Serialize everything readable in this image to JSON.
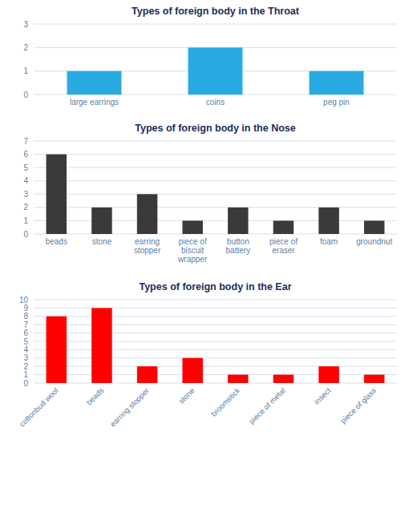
{
  "chart_data": [
    {
      "type": "bar",
      "title": "Types of foreign body in the Throat",
      "categories": [
        "large earrings",
        "coins",
        "peg pin"
      ],
      "values": [
        1,
        2,
        1
      ],
      "color": "#29ABE2",
      "ylim": [
        0,
        3
      ],
      "yticks": [
        0,
        1,
        2,
        3
      ],
      "grid": true
    },
    {
      "type": "bar",
      "title": "Types of foreign body in the Nose",
      "categories": [
        "beads",
        "stone",
        "earring\nstopper",
        "piece of\nbiscuit\nwrapper",
        "button\nbattery",
        "piece of\neraser",
        "foam",
        "groundnut"
      ],
      "values": [
        6,
        2,
        3,
        1,
        2,
        1,
        2,
        1
      ],
      "color": "#3a3a3a",
      "ylim": [
        0,
        7
      ],
      "yticks": [
        0,
        1,
        2,
        3,
        4,
        5,
        6,
        7
      ],
      "grid": true
    },
    {
      "type": "bar",
      "title": "Types of foreign body in the Ear",
      "categories": [
        "cottonbud wool",
        "beads",
        "earring stopper",
        "stone",
        "broomstick",
        "piece of metal",
        "insect",
        "piece of glass"
      ],
      "values": [
        8,
        9,
        2,
        3,
        1,
        1,
        2,
        1
      ],
      "color": "#FF0000",
      "ylim": [
        0,
        10
      ],
      "yticks": [
        0,
        1,
        2,
        3,
        4,
        5,
        6,
        7,
        8,
        9,
        10
      ],
      "grid": true
    }
  ]
}
